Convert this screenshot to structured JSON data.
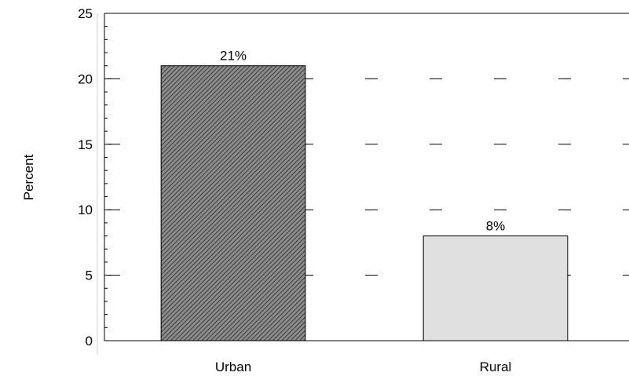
{
  "chart_data": {
    "type": "bar",
    "title": "",
    "xlabel": "",
    "ylabel": "Percent",
    "categories": [
      "Urban",
      "Rural"
    ],
    "values": [
      21,
      8
    ],
    "data_labels": [
      "21%",
      "8%"
    ],
    "ylim": [
      0,
      25
    ],
    "y_ticks": [
      0,
      5,
      10,
      15,
      20,
      25
    ],
    "y_tick_labels": [
      "0",
      "5",
      "10",
      "15",
      "20",
      "25"
    ],
    "grid": "dashed horizontal at major ticks",
    "legend": "none",
    "bar_fills": [
      "hatched-dark",
      "#e0e0e0"
    ],
    "colors": {
      "hatch_fg": "#3a3a3a",
      "hatch_bg": "#8c8c8c",
      "light_bar": "#e0e0e0",
      "axis": "#000000"
    }
  }
}
